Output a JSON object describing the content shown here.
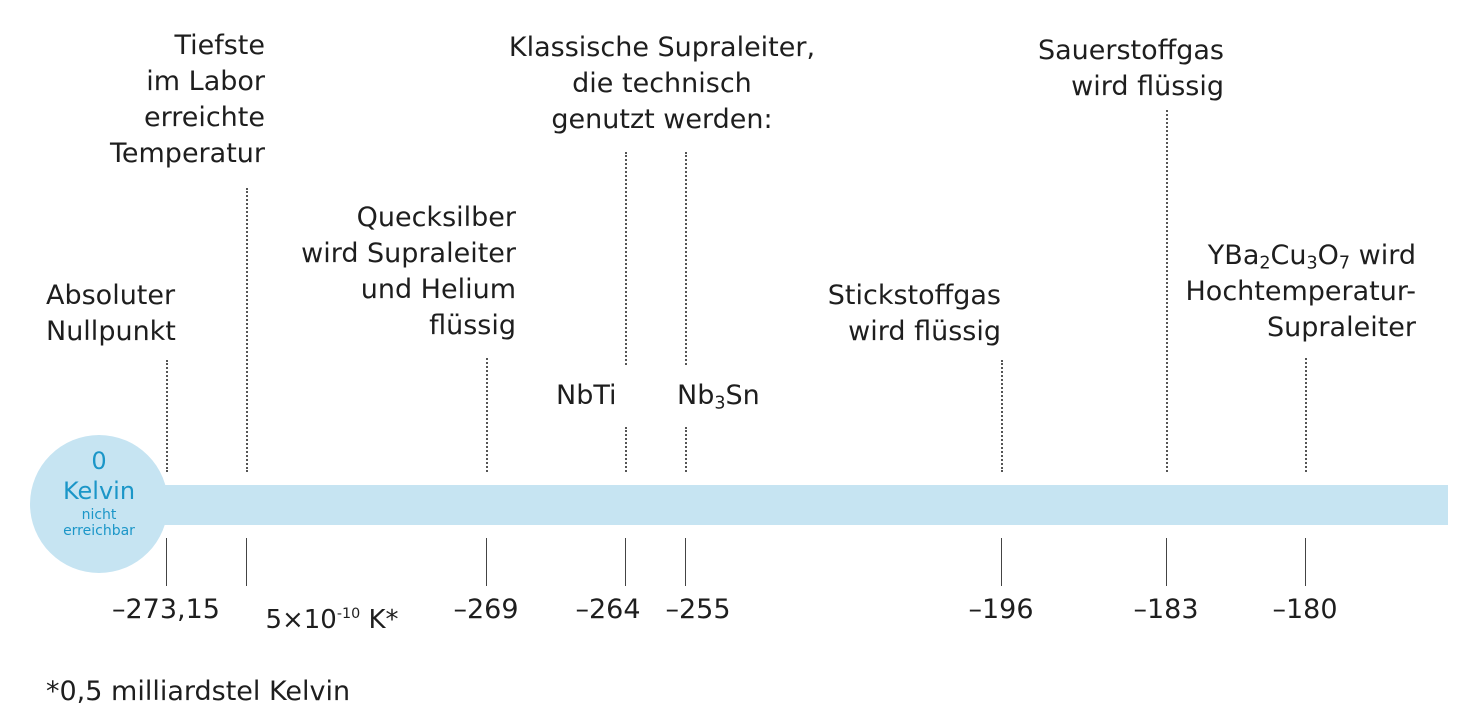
{
  "labels": {
    "absolute_zero": [
      "Absoluter",
      "Nullpunkt"
    ],
    "lowest_lab": [
      "Tiefste",
      "im Labor",
      "erreichte",
      "Temperatur"
    ],
    "mercury": [
      "Quecksilber",
      "wird Supraleiter",
      "und Helium",
      "flüssig"
    ],
    "classic": [
      "Klassische Supraleiter,",
      "die technisch",
      "genutzt werden:"
    ],
    "nbti": "NbTi",
    "nb3sn": {
      "a": "Nb",
      "b": "3",
      "c": "Sn"
    },
    "nitrogen": [
      "Stickstoffgas",
      "wird flüssig"
    ],
    "oxygen": [
      "Sauerstoffgas",
      "wird flüssig"
    ],
    "ybco": {
      "y1": "YBa",
      "s1": "2",
      "y2": "Cu",
      "s2": "3",
      "y3": "O",
      "s3": "7",
      "y4": " wird",
      "line2": "Hochtemperatur-",
      "line3": "Supraleiter"
    }
  },
  "values": {
    "v_abs": "–273,15",
    "v_lab": {
      "base": "5×10",
      "exp": "-10",
      "unit": " K*"
    },
    "v_hg": "–269",
    "v_nbti": "–264",
    "v_nb3sn": "–255",
    "v_n2": "–196",
    "v_o2": "–183",
    "v_ybco": "–180"
  },
  "circle": {
    "zero": "0",
    "kelvin": "Kelvin",
    "line1": "nicht",
    "line2": "erreichbar"
  },
  "footnote": "*0,5 milliardstel Kelvin",
  "colors": {
    "bar": "#c6e4f2",
    "accent": "#1b96c8",
    "text": "#1e1e1e"
  }
}
